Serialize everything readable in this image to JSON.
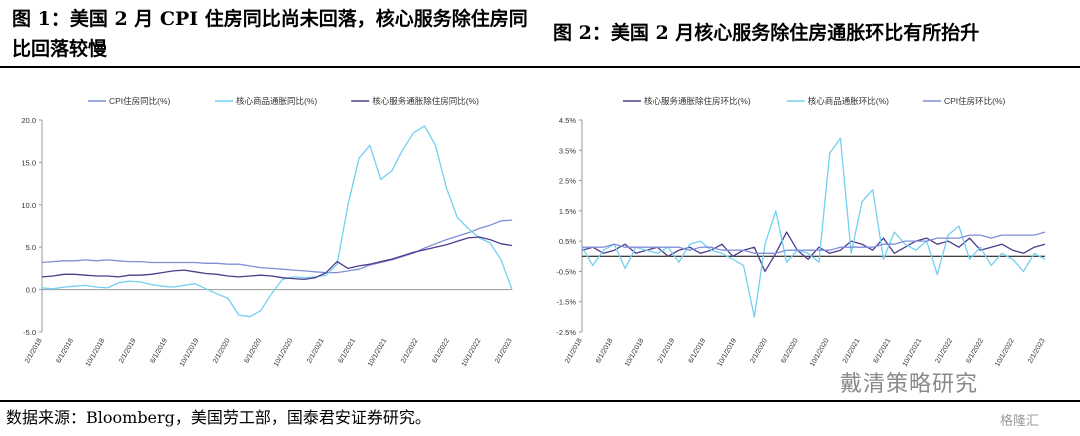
{
  "figure1": {
    "title": "图 1：美国 2 月 CPI 住房同比尚未回落，核心服务除住房同比回落较慢"
  },
  "figure2": {
    "title": "图 2：美国 2 月核心服务除住房通胀环比有所抬升"
  },
  "source": "数据来源：Bloomberg，美国劳工部，国泰君安证券研究。",
  "watermark": {
    "main": "戴清策略研究",
    "corner": "格隆汇"
  },
  "chart_data": [
    {
      "type": "line",
      "legend_position": "top",
      "ylim": [
        -5,
        20
      ],
      "y_ticks": [
        "20.0",
        "15.0",
        "10.0",
        "5.0",
        "0.0",
        "-5.0"
      ],
      "y_tick_values": [
        20,
        15,
        10,
        5,
        0,
        -5
      ],
      "x_ticks": [
        "2/1/2018",
        "6/1/2018",
        "10/1/2018",
        "2/1/2019",
        "6/1/2019",
        "10/1/2019",
        "2/1/2020",
        "6/1/2020",
        "10/1/2020",
        "2/1/2021",
        "6/1/2021",
        "10/1/2021",
        "2/1/2022",
        "6/1/2022",
        "10/1/2022",
        "2/1/2023"
      ],
      "series": [
        {
          "name": "CPI住房同比(%)",
          "color": "#7f8fd8",
          "values": [
            3.2,
            3.3,
            3.4,
            3.4,
            3.5,
            3.4,
            3.5,
            3.4,
            3.3,
            3.3,
            3.2,
            3.2,
            3.2,
            3.2,
            3.2,
            3.1,
            3.1,
            3.0,
            3.0,
            2.8,
            2.6,
            2.5,
            2.4,
            2.3,
            2.2,
            2.1,
            2.0,
            2.0,
            2.2,
            2.4,
            2.9,
            3.2,
            3.5,
            3.9,
            4.3,
            4.9,
            5.4,
            5.9,
            6.3,
            6.7,
            7.2,
            7.6,
            8.1,
            8.2
          ]
        },
        {
          "name": "核心商品通胀同比(%)",
          "color": "#73d0f0",
          "values": [
            0.2,
            0.1,
            0.3,
            0.4,
            0.5,
            0.3,
            0.2,
            0.8,
            1.0,
            0.9,
            0.6,
            0.4,
            0.3,
            0.5,
            0.7,
            0.1,
            -0.5,
            -1.0,
            -3.0,
            -3.2,
            -2.5,
            -0.5,
            1.2,
            1.5,
            1.4,
            1.5,
            1.7,
            3.0,
            10.0,
            15.5,
            17.0,
            13.0,
            14.0,
            16.5,
            18.5,
            19.3,
            17.0,
            12.0,
            8.5,
            7.2,
            6.1,
            5.5,
            3.5,
            0.0
          ]
        },
        {
          "name": "核心服务通胀除住房同比(%)",
          "color": "#4e3b8c",
          "values": [
            1.5,
            1.6,
            1.8,
            1.8,
            1.7,
            1.6,
            1.6,
            1.5,
            1.7,
            1.7,
            1.8,
            2.0,
            2.2,
            2.3,
            2.1,
            1.9,
            1.8,
            1.6,
            1.5,
            1.6,
            1.7,
            1.6,
            1.4,
            1.3,
            1.2,
            1.4,
            2.0,
            3.3,
            2.5,
            2.8,
            3.0,
            3.3,
            3.6,
            4.0,
            4.4,
            4.7,
            5.0,
            5.3,
            5.7,
            6.1,
            6.2,
            5.9,
            5.4,
            5.2
          ]
        }
      ]
    },
    {
      "type": "line",
      "legend_position": "top",
      "ylim": [
        -2.5,
        4.5
      ],
      "y_ticks": [
        "4.5%",
        "3.5%",
        "2.5%",
        "1.5%",
        "0.5%",
        "-0.5%",
        "-1.5%",
        "-2.5%"
      ],
      "y_tick_values": [
        4.5,
        3.5,
        2.5,
        1.5,
        0.5,
        -0.5,
        -1.5,
        -2.5
      ],
      "x_ticks": [
        "2/1/2018",
        "6/1/2018",
        "10/1/2018",
        "2/1/2019",
        "6/1/2019",
        "10/1/2019",
        "2/1/2020",
        "6/1/2020",
        "10/1/2020",
        "2/1/2021",
        "6/1/2021",
        "10/1/2021",
        "2/1/2022",
        "6/1/2022",
        "10/1/2022",
        "2/1/2023"
      ],
      "series": [
        {
          "name": "核心服务通胀除住房环比(%)",
          "color": "#4e3b8c",
          "values": [
            0.2,
            0.3,
            0.1,
            0.2,
            0.4,
            0.1,
            0.2,
            0.3,
            0.0,
            0.2,
            0.3,
            0.1,
            0.2,
            0.4,
            0.0,
            0.2,
            0.3,
            -0.5,
            0.1,
            0.8,
            0.2,
            -0.1,
            0.3,
            0.1,
            0.2,
            0.5,
            0.4,
            0.2,
            0.6,
            0.1,
            0.3,
            0.5,
            0.6,
            0.4,
            0.5,
            0.3,
            0.6,
            0.2,
            0.3,
            0.4,
            0.2,
            0.1,
            0.3,
            0.4
          ]
        },
        {
          "name": "核心商品通胀环比(%)",
          "color": "#73d0f0",
          "values": [
            0.3,
            -0.3,
            0.2,
            0.4,
            -0.4,
            0.3,
            0.2,
            0.1,
            0.3,
            -0.2,
            0.4,
            0.5,
            0.2,
            0.1,
            -0.1,
            -0.3,
            -2.0,
            0.4,
            1.5,
            -0.2,
            0.2,
            0.1,
            -0.2,
            3.4,
            3.9,
            0.1,
            1.8,
            2.2,
            -0.1,
            0.8,
            0.4,
            0.2,
            0.5,
            -0.6,
            0.7,
            1.0,
            -0.1,
            0.3,
            -0.3,
            0.1,
            -0.1,
            -0.5,
            0.1,
            -0.1
          ]
        },
        {
          "name": "CPI住房环比(%)",
          "color": "#7f8fd8",
          "values": [
            0.3,
            0.3,
            0.3,
            0.4,
            0.3,
            0.3,
            0.3,
            0.3,
            0.3,
            0.3,
            0.2,
            0.3,
            0.3,
            0.2,
            0.2,
            0.2,
            0.1,
            0.1,
            0.1,
            0.2,
            0.2,
            0.2,
            0.2,
            0.2,
            0.3,
            0.3,
            0.3,
            0.3,
            0.4,
            0.4,
            0.5,
            0.5,
            0.5,
            0.6,
            0.6,
            0.6,
            0.7,
            0.7,
            0.6,
            0.7,
            0.7,
            0.7,
            0.7,
            0.8
          ]
        }
      ]
    }
  ]
}
